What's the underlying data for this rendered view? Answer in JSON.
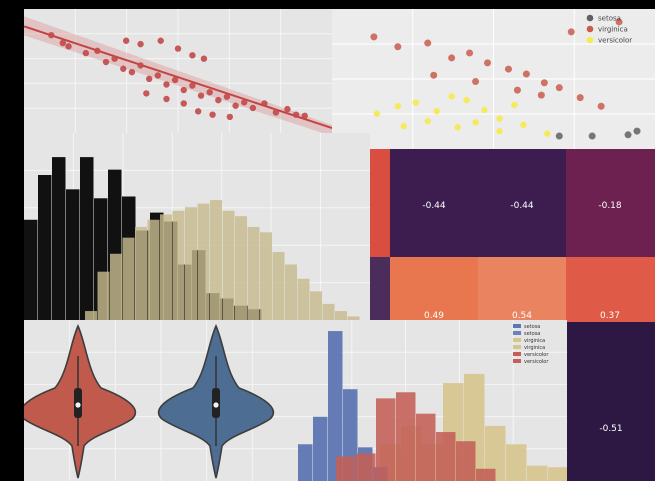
{
  "chart_data": [
    {
      "type": "scatter",
      "series": [
        {
          "values": [
            [
              0.06,
              0.82
            ],
            [
              0.1,
              0.75
            ],
            [
              0.12,
              0.72
            ],
            [
              0.18,
              0.66
            ],
            [
              0.22,
              0.68
            ],
            [
              0.25,
              0.58
            ],
            [
              0.28,
              0.61
            ],
            [
              0.31,
              0.52
            ],
            [
              0.34,
              0.49
            ],
            [
              0.37,
              0.55
            ],
            [
              0.4,
              0.43
            ],
            [
              0.43,
              0.46
            ],
            [
              0.46,
              0.38
            ],
            [
              0.49,
              0.42
            ],
            [
              0.52,
              0.33
            ],
            [
              0.55,
              0.37
            ],
            [
              0.58,
              0.28
            ],
            [
              0.61,
              0.31
            ],
            [
              0.64,
              0.24
            ],
            [
              0.67,
              0.27
            ],
            [
              0.7,
              0.19
            ],
            [
              0.73,
              0.22
            ],
            [
              0.76,
              0.17
            ],
            [
              0.8,
              0.21
            ],
            [
              0.84,
              0.13
            ],
            [
              0.88,
              0.16
            ],
            [
              0.91,
              0.11
            ],
            [
              0.94,
              0.1
            ],
            [
              0.32,
              0.77
            ],
            [
              0.37,
              0.74
            ],
            [
              0.44,
              0.77
            ],
            [
              0.5,
              0.7
            ],
            [
              0.55,
              0.64
            ],
            [
              0.59,
              0.61
            ],
            [
              0.39,
              0.3
            ],
            [
              0.46,
              0.25
            ],
            [
              0.52,
              0.21
            ],
            [
              0.57,
              0.14
            ],
            [
              0.62,
              0.11
            ],
            [
              0.68,
              0.09
            ]
          ]
        }
      ],
      "regression": {
        "start": [
          0.0,
          0.86
        ],
        "end": [
          1.0,
          0.04
        ]
      },
      "ylim": [
        0,
        1
      ]
    },
    {
      "type": "scatter",
      "legend": [
        "setosa",
        "virginica",
        "versicolor"
      ],
      "series": [
        {
          "name": "setosa",
          "values": [
            [
              0.72,
              0.04
            ],
            [
              0.83,
              0.04
            ],
            [
              0.95,
              0.05
            ],
            [
              0.98,
              0.08
            ]
          ]
        },
        {
          "name": "virginica",
          "values": [
            [
              0.1,
              0.84
            ],
            [
              0.18,
              0.76
            ],
            [
              0.28,
              0.79
            ],
            [
              0.36,
              0.67
            ],
            [
              0.42,
              0.71
            ],
            [
              0.48,
              0.63
            ],
            [
              0.55,
              0.58
            ],
            [
              0.61,
              0.54
            ],
            [
              0.67,
              0.47
            ],
            [
              0.72,
              0.43
            ],
            [
              0.79,
              0.35
            ],
            [
              0.86,
              0.28
            ],
            [
              0.3,
              0.53
            ],
            [
              0.44,
              0.48
            ],
            [
              0.58,
              0.41
            ],
            [
              0.66,
              0.37
            ],
            [
              0.92,
              0.96
            ],
            [
              0.76,
              0.88
            ]
          ]
        },
        {
          "name": "versicolor",
          "values": [
            [
              0.11,
              0.22
            ],
            [
              0.18,
              0.28
            ],
            [
              0.24,
              0.31
            ],
            [
              0.31,
              0.24
            ],
            [
              0.36,
              0.36
            ],
            [
              0.41,
              0.33
            ],
            [
              0.47,
              0.25
            ],
            [
              0.52,
              0.18
            ],
            [
              0.57,
              0.29
            ],
            [
              0.2,
              0.12
            ],
            [
              0.28,
              0.16
            ],
            [
              0.38,
              0.11
            ],
            [
              0.44,
              0.15
            ],
            [
              0.52,
              0.08
            ],
            [
              0.6,
              0.13
            ],
            [
              0.68,
              0.06
            ]
          ]
        }
      ],
      "colors": [
        "#616161",
        "#c85d4c",
        "#f6ea54"
      ]
    },
    {
      "type": "bar",
      "series": [
        {
          "values": [
            0.56,
            0.81,
            0.91,
            0.73,
            0.91,
            0.68,
            0.84,
            0.69,
            0.5,
            0.6,
            0.55,
            0.31,
            0.39,
            0.15,
            0.12,
            0.08,
            0.06
          ],
          "color": "#111111"
        },
        {
          "values": [
            0.0,
            0.0,
            0.05,
            0.27,
            0.37,
            0.46,
            0.52,
            0.56,
            0.59,
            0.61,
            0.63,
            0.65,
            0.67,
            0.61,
            0.58,
            0.52,
            0.49,
            0.38,
            0.31,
            0.23,
            0.16,
            0.09,
            0.05,
            0.02
          ],
          "color": "#c6bb8d"
        }
      ]
    },
    {
      "type": "heatmap",
      "values": [
        [
          "-0.44",
          "-0.44",
          "-0.18"
        ],
        [
          "0.49",
          "0.54",
          "0.37"
        ],
        [
          "",
          "",
          "-0.51"
        ]
      ]
    },
    {
      "type": "violin",
      "series": [
        {
          "color": "#bf5a4d",
          "center": 0.16
        },
        {
          "color": "#4d6d93",
          "center": 0.57
        }
      ]
    },
    {
      "type": "bar",
      "legend": [
        "setosa",
        "setosa",
        "virginica",
        "virginica",
        "versicolor",
        "versicolor"
      ],
      "series": [
        {
          "name": "setosa",
          "values": [
            0.24,
            0.42,
            0.98,
            0.6,
            0.22,
            0.09
          ],
          "color": "#5f77b4"
        },
        {
          "name": "virginica",
          "values": [
            0.24,
            0.36,
            0.24,
            0.64,
            0.7,
            0.36,
            0.24,
            0.1,
            0.09
          ],
          "color": "#d6c58e"
        },
        {
          "name": "versicolor",
          "values": [
            0.16,
            0.18,
            0.54,
            0.58,
            0.44,
            0.32,
            0.26,
            0.08
          ],
          "color": "#c45e56"
        }
      ]
    }
  ]
}
